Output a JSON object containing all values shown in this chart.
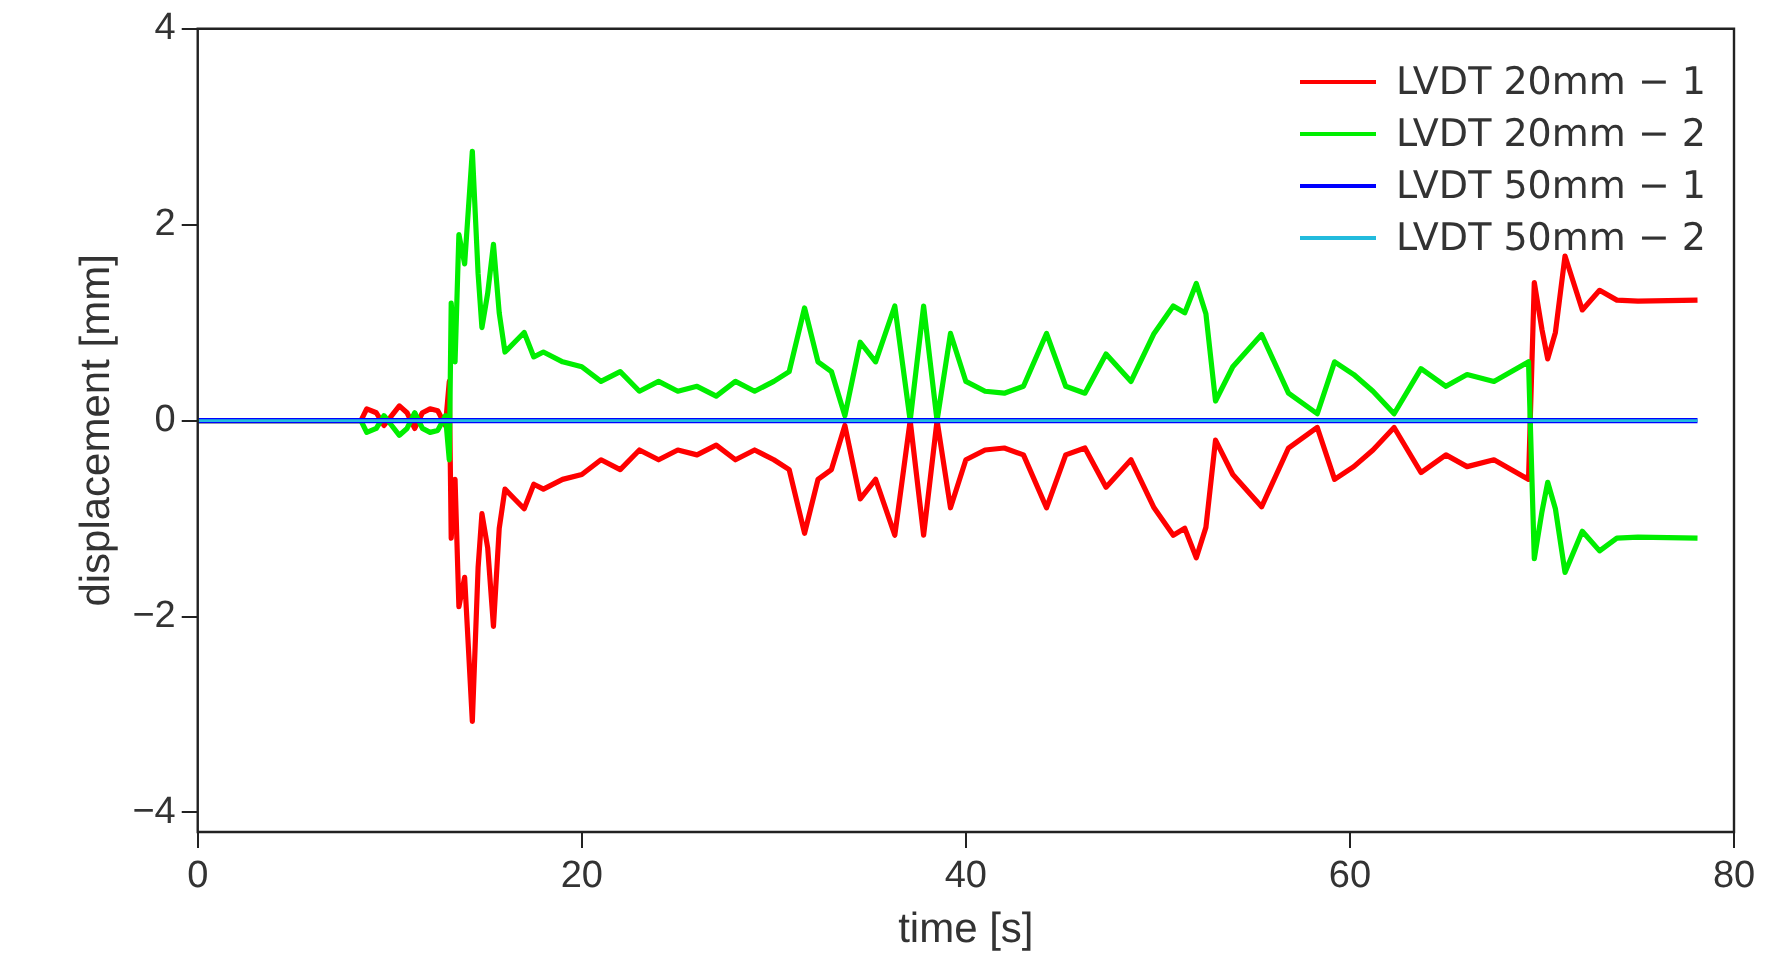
{
  "chart_data": {
    "type": "line",
    "xlabel": "time [s]",
    "ylabel": "displacement [mm]",
    "xlim": [
      0,
      80
    ],
    "xticks": [
      0,
      20,
      40,
      60,
      80
    ],
    "ylim": [
      -4.2,
      4
    ],
    "yticks": [
      -4,
      -2,
      0,
      2,
      4
    ],
    "grid": false,
    "legend": "top right",
    "marker": "none",
    "line_style": "solid",
    "series": [
      {
        "name": "LVDT 20mm − 1",
        "color": "#ff0000",
        "x": [
          0,
          8.5,
          8.8,
          9.3,
          9.7,
          10.1,
          10.5,
          10.9,
          11.3,
          11.7,
          12.1,
          12.5,
          12.9,
          13.1,
          13.2,
          13.4,
          13.6,
          13.9,
          14.3,
          14.6,
          14.8,
          15.1,
          15.4,
          15.7,
          16,
          16.5,
          17,
          17.5,
          18,
          19,
          20,
          21,
          22,
          23,
          24,
          25,
          26,
          27,
          28,
          29,
          30,
          30.8,
          31.6,
          32.3,
          33,
          33.7,
          34.5,
          35.3,
          36.3,
          37.1,
          37.8,
          38.5,
          39.2,
          40,
          41,
          42,
          43,
          44.2,
          45.2,
          46.2,
          47.3,
          48.6,
          49.8,
          50.8,
          51.4,
          52,
          52.5,
          53,
          53.9,
          55.4,
          56.8,
          58.3,
          59.2,
          60.2,
          61.2,
          62.3,
          63.7,
          65,
          66.1,
          67.5,
          69.3,
          69.6,
          70,
          70.3,
          70.7,
          71.2,
          72.1,
          73,
          73.9,
          75,
          78.1
        ],
        "values": [
          0,
          0,
          0.12,
          0.08,
          -0.05,
          0.05,
          0.15,
          0.08,
          -0.08,
          0.08,
          0.12,
          0.1,
          -0.05,
          0.4,
          -1.2,
          -0.6,
          -1.9,
          -1.6,
          -3.07,
          -1.5,
          -0.95,
          -1.3,
          -2.1,
          -1.1,
          -0.7,
          -0.8,
          -0.9,
          -0.65,
          -0.7,
          -0.6,
          -0.55,
          -0.4,
          -0.5,
          -0.3,
          -0.4,
          -0.3,
          -0.35,
          -0.25,
          -0.4,
          -0.3,
          -0.4,
          -0.5,
          -1.15,
          -0.6,
          -0.5,
          -0.05,
          -0.8,
          -0.6,
          -1.17,
          0,
          -1.17,
          0,
          -0.89,
          -0.4,
          -0.3,
          -0.28,
          -0.35,
          -0.89,
          -0.35,
          -0.28,
          -0.68,
          -0.4,
          -0.89,
          -1.17,
          -1.1,
          -1.4,
          -1.09,
          -0.2,
          -0.55,
          -0.88,
          -0.28,
          -0.07,
          -0.6,
          -0.47,
          -0.3,
          -0.07,
          -0.53,
          -0.35,
          -0.47,
          -0.4,
          -0.6,
          1.41,
          0.93,
          0.63,
          0.9,
          1.68,
          1.13,
          1.33,
          1.23,
          1.22,
          1.23
        ]
      },
      {
        "name": "LVDT 20mm − 2",
        "color": "#00ee00",
        "x": [
          0,
          8.5,
          8.8,
          9.3,
          9.7,
          10.1,
          10.5,
          10.9,
          11.3,
          11.7,
          12.1,
          12.5,
          12.9,
          13.1,
          13.2,
          13.4,
          13.6,
          13.9,
          14.3,
          14.6,
          14.8,
          15.1,
          15.4,
          15.7,
          16,
          16.5,
          17,
          17.5,
          18,
          19,
          20,
          21,
          22,
          23,
          24,
          25,
          26,
          27,
          28,
          29,
          30,
          30.8,
          31.6,
          32.3,
          33,
          33.7,
          34.5,
          35.3,
          36.3,
          37.1,
          37.8,
          38.5,
          39.2,
          40,
          41,
          42,
          43,
          44.2,
          45.2,
          46.2,
          47.3,
          48.6,
          49.8,
          50.8,
          51.4,
          52,
          52.5,
          53,
          53.9,
          55.4,
          56.8,
          58.3,
          59.2,
          60.2,
          61.2,
          62.3,
          63.7,
          65,
          66.1,
          67.5,
          69.3,
          69.6,
          70,
          70.3,
          70.7,
          71.2,
          72.1,
          73,
          73.9,
          75,
          78.1
        ],
        "values": [
          0,
          0,
          -0.12,
          -0.08,
          0.05,
          -0.05,
          -0.15,
          -0.08,
          0.08,
          -0.08,
          -0.12,
          -0.1,
          0.05,
          -0.4,
          1.2,
          0.6,
          1.9,
          1.6,
          2.75,
          1.5,
          0.95,
          1.3,
          1.8,
          1.1,
          0.7,
          0.8,
          0.9,
          0.65,
          0.7,
          0.6,
          0.55,
          0.4,
          0.5,
          0.3,
          0.4,
          0.3,
          0.35,
          0.25,
          0.4,
          0.3,
          0.4,
          0.5,
          1.15,
          0.6,
          0.5,
          0.05,
          0.8,
          0.6,
          1.17,
          0,
          1.17,
          0,
          0.89,
          0.4,
          0.3,
          0.28,
          0.35,
          0.89,
          0.35,
          0.28,
          0.68,
          0.4,
          0.89,
          1.17,
          1.1,
          1.4,
          1.09,
          0.2,
          0.55,
          0.88,
          0.28,
          0.07,
          0.6,
          0.47,
          0.3,
          0.07,
          0.53,
          0.35,
          0.47,
          0.4,
          0.6,
          -1.41,
          -0.93,
          -0.63,
          -0.9,
          -1.55,
          -1.13,
          -1.33,
          -1.2,
          -1.19,
          -1.2
        ]
      },
      {
        "name": "LVDT 50mm − 1",
        "color": "#0000ff",
        "x": [
          0,
          78.1
        ],
        "values": [
          0,
          0
        ]
      },
      {
        "name": "LVDT 50mm − 2",
        "color": "#22bbdd",
        "x": [
          0,
          78.1
        ],
        "values": [
          0,
          0
        ]
      }
    ]
  }
}
